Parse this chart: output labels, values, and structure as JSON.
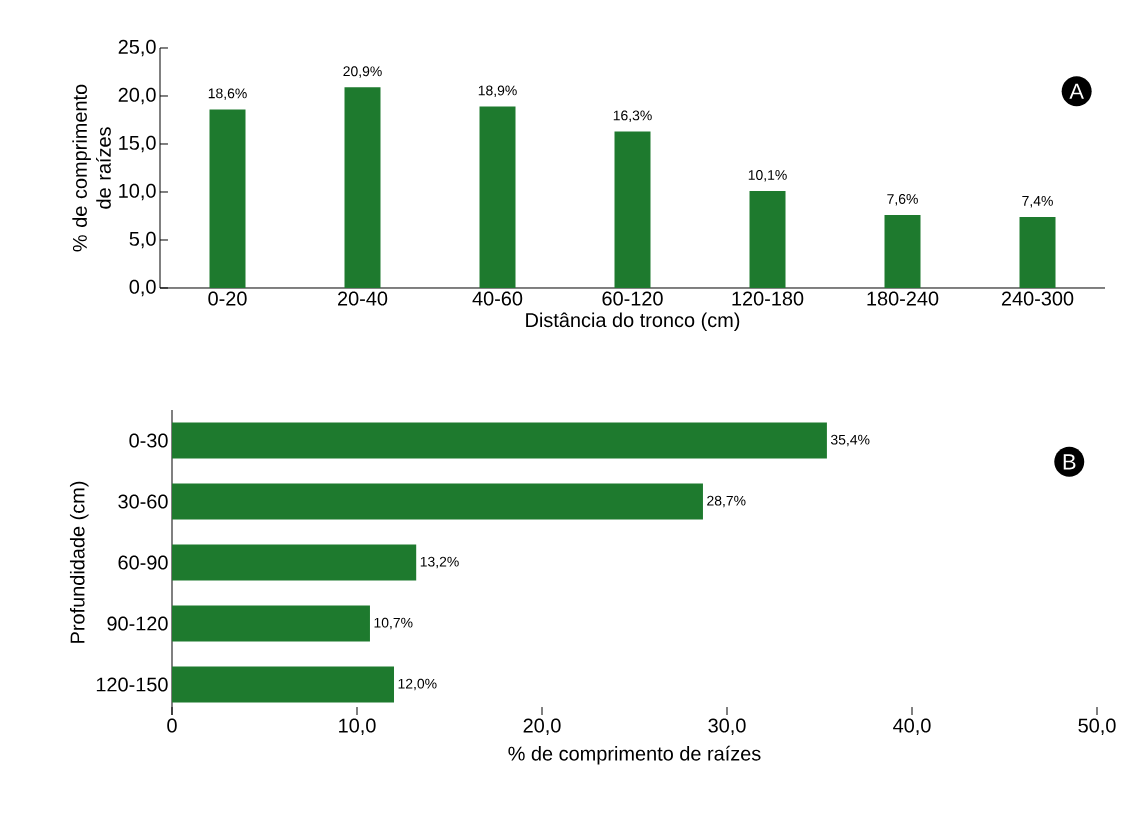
{
  "chart_data": [
    {
      "type": "bar",
      "xlabel": "Distância do tronco (cm)",
      "ylabel": "% de comprimento de raízes",
      "categories": [
        "0-20",
        "20-40",
        "40-60",
        "60-120",
        "120-180",
        "180-240",
        "240-300"
      ],
      "values": [
        18.6,
        20.9,
        18.9,
        16.3,
        10.1,
        7.6,
        7.4
      ],
      "value_labels": [
        "18,6%",
        "20,9%",
        "18,9%",
        "16,3%",
        "10,1%",
        "7,6%",
        "7,4%"
      ],
      "color": "#1e7a2e",
      "ylim": [
        0,
        25
      ],
      "yticks": [
        {
          "value": 0,
          "label": "0,0"
        },
        {
          "value": 5,
          "label": "5,0"
        },
        {
          "value": 10,
          "label": "10,0"
        },
        {
          "value": 15,
          "label": "15,0"
        },
        {
          "value": 20,
          "label": "20,0"
        },
        {
          "value": 25,
          "label": "25,0"
        }
      ],
      "annotations": [
        "A"
      ]
    },
    {
      "type": "bar",
      "orientation": "horizontal",
      "xlabel": "% de comprimento de raízes",
      "ylabel": "Profundidade (cm)",
      "categories": [
        "0-30",
        "30-60",
        "60-90",
        "90-120",
        "120-150"
      ],
      "values": [
        35.4,
        28.7,
        13.2,
        10.7,
        12.0
      ],
      "value_labels": [
        "35,4%",
        "28,7%",
        "13,2%",
        "10,7%",
        "12,0%"
      ],
      "color": "#1e7a2e",
      "xlim": [
        0,
        50
      ],
      "xticks": [
        0,
        {
          "value": 10,
          "label": "10,0"
        },
        {
          "value": 20,
          "label": "20,0"
        },
        {
          "value": 30,
          "label": "30,0"
        },
        {
          "value": 40,
          "label": "40,0"
        },
        {
          "value": 50,
          "label": "50,0"
        }
      ],
      "annotations": [
        "B"
      ]
    }
  ]
}
